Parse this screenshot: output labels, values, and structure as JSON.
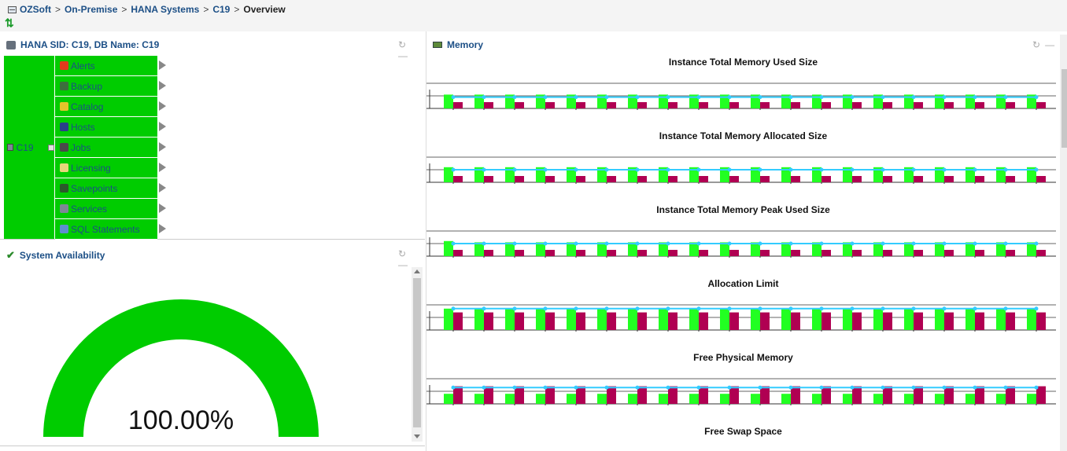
{
  "breadcrumb": {
    "items": [
      "OZSoft",
      "On-Premise",
      "HANA Systems",
      "C19"
    ],
    "current": "Overview",
    "separator": ">"
  },
  "sid_panel": {
    "title": "HANA SID: C19, DB Name: C19",
    "root_label": "C19",
    "items": [
      {
        "label": "Alerts",
        "icon": "alert-icon",
        "color": "#e23b1c"
      },
      {
        "label": "Backup",
        "icon": "database-icon",
        "color": "#3d6e3d"
      },
      {
        "label": "Catalog",
        "icon": "catalog-icon",
        "color": "#e2c42b"
      },
      {
        "label": "Hosts",
        "icon": "hosts-icon",
        "color": "#2a3f8a"
      },
      {
        "label": "Jobs",
        "icon": "jobs-icon",
        "color": "#4a4a4a"
      },
      {
        "label": "Licensing",
        "icon": "license-icon",
        "color": "#e8d67a"
      },
      {
        "label": "Savepoints",
        "icon": "savepoints-icon",
        "color": "#2b5a2b"
      },
      {
        "label": "Services",
        "icon": "services-icon",
        "color": "#7d8896"
      },
      {
        "label": "SQL Statements",
        "icon": "sql-icon",
        "color": "#5d8fcf"
      }
    ]
  },
  "availability_panel": {
    "title": "System Availability",
    "value_text": "100.00%",
    "value": 100
  },
  "memory_panel": {
    "title": "Memory"
  },
  "colors": {
    "accent_green": "#00cc00",
    "bar_green": "#22ff22",
    "bar_crimson": "#b00052",
    "line_cyan": "#33ccff",
    "link_blue": "#1c4f86"
  },
  "chart_data": [
    {
      "type": "bar",
      "title": "Instance Total Memory Used Size",
      "series": [
        {
          "values": [
            0.55,
            0.55,
            0.55,
            0.55,
            0.55,
            0.55,
            0.55,
            0.55,
            0.55,
            0.55,
            0.55,
            0.55,
            0.55,
            0.55,
            0.55,
            0.55,
            0.55,
            0.55,
            0.55,
            0.55
          ]
        },
        {
          "values": [
            0.25,
            0.25,
            0.25,
            0.25,
            0.25,
            0.25,
            0.25,
            0.25,
            0.25,
            0.25,
            0.25,
            0.25,
            0.25,
            0.25,
            0.25,
            0.25,
            0.25,
            0.25,
            0.25,
            0.25
          ]
        },
        {
          "values": [
            0.45,
            0.45,
            0.45,
            0.45,
            0.45,
            0.45,
            0.45,
            0.45,
            0.45,
            0.45,
            0.45,
            0.45,
            0.45,
            0.45,
            0.45,
            0.45,
            0.45,
            0.45,
            0.45,
            0.45
          ]
        }
      ]
    },
    {
      "type": "bar",
      "title": "Instance Total Memory Allocated Size",
      "series": [
        {
          "values": [
            0.6,
            0.6,
            0.6,
            0.6,
            0.6,
            0.6,
            0.6,
            0.6,
            0.6,
            0.6,
            0.6,
            0.6,
            0.6,
            0.6,
            0.6,
            0.6,
            0.6,
            0.6,
            0.6,
            0.6
          ]
        },
        {
          "values": [
            0.25,
            0.25,
            0.25,
            0.25,
            0.25,
            0.25,
            0.25,
            0.25,
            0.25,
            0.25,
            0.25,
            0.25,
            0.25,
            0.25,
            0.25,
            0.25,
            0.25,
            0.25,
            0.25,
            0.25
          ]
        },
        {
          "values": [
            0.5,
            0.5,
            0.5,
            0.5,
            0.5,
            0.5,
            0.5,
            0.5,
            0.5,
            0.5,
            0.5,
            0.5,
            0.5,
            0.5,
            0.5,
            0.5,
            0.5,
            0.5,
            0.5,
            0.5
          ]
        }
      ]
    },
    {
      "type": "bar",
      "title": "Instance Total Memory Peak Used Size",
      "series": [
        {
          "values": [
            0.6,
            0.55,
            0.55,
            0.55,
            0.55,
            0.55,
            0.55,
            0.55,
            0.55,
            0.55,
            0.55,
            0.55,
            0.55,
            0.55,
            0.55,
            0.55,
            0.55,
            0.55,
            0.55,
            0.55
          ]
        },
        {
          "values": [
            0.25,
            0.25,
            0.25,
            0.25,
            0.25,
            0.25,
            0.25,
            0.25,
            0.25,
            0.25,
            0.25,
            0.25,
            0.25,
            0.25,
            0.25,
            0.25,
            0.25,
            0.25,
            0.25,
            0.25
          ]
        },
        {
          "values": [
            0.5,
            0.5,
            0.5,
            0.5,
            0.5,
            0.5,
            0.5,
            0.5,
            0.5,
            0.5,
            0.5,
            0.5,
            0.5,
            0.5,
            0.5,
            0.5,
            0.5,
            0.5,
            0.5,
            0.5
          ]
        }
      ]
    },
    {
      "type": "bar",
      "title": "Allocation Limit",
      "series": [
        {
          "values": [
            0.85,
            0.85,
            0.85,
            0.85,
            0.85,
            0.85,
            0.85,
            0.85,
            0.85,
            0.85,
            0.85,
            0.85,
            0.85,
            0.85,
            0.85,
            0.85,
            0.85,
            0.85,
            0.85,
            0.85
          ]
        },
        {
          "values": [
            0.7,
            0.7,
            0.7,
            0.7,
            0.7,
            0.7,
            0.7,
            0.7,
            0.7,
            0.7,
            0.7,
            0.7,
            0.7,
            0.7,
            0.7,
            0.7,
            0.7,
            0.7,
            0.7,
            0.7
          ]
        },
        {
          "values": [
            0.85,
            0.85,
            0.85,
            0.85,
            0.85,
            0.85,
            0.85,
            0.85,
            0.85,
            0.85,
            0.85,
            0.85,
            0.85,
            0.85,
            0.85,
            0.85,
            0.85,
            0.85,
            0.85,
            0.85
          ]
        }
      ]
    },
    {
      "type": "bar",
      "title": "Free Physical Memory",
      "series": [
        {
          "values": [
            0.4,
            0.4,
            0.4,
            0.4,
            0.4,
            0.4,
            0.4,
            0.4,
            0.4,
            0.4,
            0.4,
            0.4,
            0.4,
            0.4,
            0.4,
            0.4,
            0.4,
            0.4,
            0.4,
            0.4
          ]
        },
        {
          "values": [
            0.7,
            0.7,
            0.7,
            0.7,
            0.7,
            0.7,
            0.7,
            0.7,
            0.7,
            0.7,
            0.7,
            0.7,
            0.7,
            0.7,
            0.7,
            0.7,
            0.7,
            0.7,
            0.7,
            0.7
          ]
        },
        {
          "values": [
            0.65,
            0.65,
            0.65,
            0.65,
            0.65,
            0.65,
            0.65,
            0.65,
            0.65,
            0.65,
            0.65,
            0.65,
            0.65,
            0.65,
            0.65,
            0.65,
            0.65,
            0.65,
            0.65,
            0.65
          ]
        }
      ]
    },
    {
      "type": "bar",
      "title": "Free Swap Space",
      "series": []
    }
  ]
}
